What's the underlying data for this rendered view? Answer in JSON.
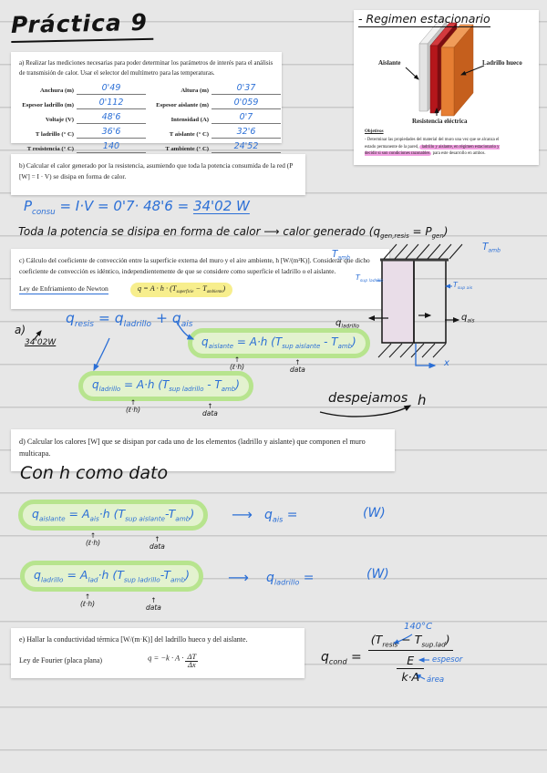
{
  "colors": {
    "paper": "#e7e7e7",
    "rule_line": "#c9c9c9",
    "ink_blue": "#2b6fd6",
    "ink_black": "#141414",
    "highlight_green": "#b7e48e",
    "highlight_yellow": "#f7ee8d",
    "highlight_pink": "#f29fe2",
    "slab_gray": "#e3e3e3",
    "slab_red": "#b5161b",
    "slab_orange": "#e67e33",
    "wall_fill": "#e9dde8"
  },
  "title": "Práctica 9",
  "figure": {
    "title": "- Regimen estacionario",
    "label_aislante": "Aislante",
    "label_ladrillo": "Ladrillo hueco",
    "label_resistencia": "Resistencia eléctrica",
    "objetivos_heading": "Objetivos",
    "objetivos_pre": "- Determinar las propiedades del material del muro una vez que se alcanza el estado permanente de la pared, ",
    "objetivos_hl": "ladrillo y aislante, en régimen estacionario y decidir si son condiciones razonables",
    "objetivos_post": " para este desarrollo en ambos."
  },
  "box_a": {
    "intro": "a) Realizar las mediciones necesarias para poder determinar los parámetros de interés para el análisis de transmisión de calor. Usar el selector del multímetro para las temperaturas.",
    "rows": [
      {
        "l_label": "Anchura (m)",
        "l_value": "0'49",
        "r_label": "Altura (m)",
        "r_value": "0'37"
      },
      {
        "l_label": "Espesor ladrillo (m)",
        "l_value": "0'112",
        "r_label": "Espesor aislante (m)",
        "r_value": "0'059"
      },
      {
        "l_label": "Voltaje (V)",
        "l_value": "48'6",
        "r_label": "Intensidad (A)",
        "r_value": "0'7"
      },
      {
        "l_label": "T ladrillo (° C)",
        "l_value": "36'6",
        "r_label": "T aislante (° C)",
        "r_value": "32'6"
      },
      {
        "l_label": "T resistencia (° C)",
        "l_value": "140",
        "r_label": "T ambiente (° C)",
        "r_value": "24'52"
      }
    ]
  },
  "box_b": {
    "text": "b) Calcular el calor generado por la resistencia, asumiendo que toda la potencia consumida de la red (P [W] = I · V) se disipa en forma de calor."
  },
  "hw_power": [
    {
      "t": "P"
    },
    {
      "t": "consu",
      "s": 1
    },
    {
      "t": " = I·V = 0'7· 48'6 = "
    },
    {
      "t": "34'02  W",
      "u": 1
    }
  ],
  "hw_toda": [
    {
      "t": "Toda  la  potencia  se  disipa  en  forma  de  calor  ⟶  calor generado (q"
    },
    {
      "t": "gen,resis",
      "s": 1
    },
    {
      "t": " = P"
    },
    {
      "t": "gen",
      "s": 1
    },
    {
      "t": ")"
    }
  ],
  "box_c": {
    "text": "c) Cálculo del coeficiente de convección entre la superficie externa del muro y el aire ambiente, h [W/(m²K)]. Considerar que dicho coeficiente de convección es idéntico, independientemente de que se considere como superficie el ladrillo o el aislante.",
    "newton_label": "Ley de Enfriamiento de Newton",
    "formula": [
      {
        "t": "q = A · h · (T"
      },
      {
        "t": "superficie",
        "s": 1
      },
      {
        "t": " − T"
      },
      {
        "t": "ambiente",
        "s": 1
      },
      {
        "t": ")"
      }
    ]
  },
  "section_c": {
    "a_label": "a)",
    "value_34": "34'02W",
    "eq_resis": [
      {
        "t": "q"
      },
      {
        "t": "resis",
        "s": 1
      },
      {
        "t": " = q"
      },
      {
        "t": "ladrillo",
        "s": 1
      },
      {
        "t": " + q"
      },
      {
        "t": "ais",
        "s": 1
      }
    ],
    "eq_aislante": [
      {
        "t": "q"
      },
      {
        "t": "aislante",
        "s": 1
      },
      {
        "t": " = A·h (T"
      },
      {
        "t": "sup aislante",
        "s": 1
      },
      {
        "t": " - T"
      },
      {
        "t": "amb",
        "s": 1
      },
      {
        "t": ")"
      }
    ],
    "eq_ladrillo": [
      {
        "t": "q"
      },
      {
        "t": "ladrillo",
        "s": 1
      },
      {
        "t": " = A·h (T"
      },
      {
        "t": "sup ladrillo",
        "s": 1
      },
      {
        "t": " - T"
      },
      {
        "t": "amb",
        "s": 1
      },
      {
        "t": ")"
      }
    ],
    "ann_arrow": "↑",
    "ann_area": "(ℓ·h)",
    "ann_data": "data",
    "despejamos": "despejamos",
    "h": "h"
  },
  "diagram": {
    "t_amb": [
      {
        "t": "T"
      },
      {
        "t": "amb",
        "s": 1
      }
    ],
    "t_sup_ladrillo": [
      {
        "t": "T"
      },
      {
        "t": "sup ladrillo",
        "s": 1
      }
    ],
    "t_sup_ais": [
      {
        "t": "T"
      },
      {
        "t": "sup ais",
        "s": 1
      }
    ],
    "q_ladrillo": [
      {
        "t": "q"
      },
      {
        "t": "ladrillo",
        "s": 1
      }
    ],
    "q_ais": [
      {
        "t": "q"
      },
      {
        "t": "ais",
        "s": 1
      }
    ],
    "x": "x"
  },
  "box_d": {
    "text": "d) Calcular los calores [W] que se disipan por cada uno de los elementos (ladrillo y aislante) que componen el muro multicapa."
  },
  "section_d": {
    "con_h": "Con  h  como dato",
    "eq_aislante": [
      {
        "t": "q"
      },
      {
        "t": "aislante",
        "s": 1
      },
      {
        "t": " = A"
      },
      {
        "t": "ais",
        "s": 1
      },
      {
        "t": "·h (T"
      },
      {
        "t": "sup aislante",
        "s": 1
      },
      {
        "t": "-T"
      },
      {
        "t": "amb",
        "s": 1
      },
      {
        "t": ")"
      }
    ],
    "eq_ladrillo": [
      {
        "t": "q"
      },
      {
        "t": "ladrillo",
        "s": 1
      },
      {
        "t": " = A"
      },
      {
        "t": "lad",
        "s": 1
      },
      {
        "t": "·h (T"
      },
      {
        "t": "sup ladrillo",
        "s": 1
      },
      {
        "t": "-T"
      },
      {
        "t": "amb",
        "s": 1
      },
      {
        "t": ")"
      }
    ],
    "arrow": "⟶",
    "res_ais": [
      {
        "t": "q"
      },
      {
        "t": "ais",
        "s": 1
      },
      {
        "t": " ="
      }
    ],
    "res_lad": [
      {
        "t": "q"
      },
      {
        "t": "ladrillo",
        "s": 1
      },
      {
        "t": " ="
      }
    ],
    "unit_w": "(W)",
    "ann_arrow": "↑",
    "ann_area": "(ℓ·h)",
    "ann_data": "data"
  },
  "box_e": {
    "line1": "e) Hallar la conductividad térmica [W/(m·K)] del ladrillo hueco y del aislante.",
    "fourier_label": "Ley de Fourier (placa plana)",
    "formula_pre": "q = −k · A ·",
    "frac_num": "ΔT",
    "frac_den": "Δx"
  },
  "qcond": {
    "lhs": [
      {
        "t": "q"
      },
      {
        "t": "cond",
        "s": 1
      },
      {
        "t": " ="
      }
    ],
    "num": [
      {
        "t": "(T"
      },
      {
        "t": "resis",
        "s": 1
      },
      {
        "t": " − T"
      },
      {
        "t": "sup.lad",
        "s": 1
      },
      {
        "t": ")"
      }
    ],
    "den_num": "E",
    "den_den": "k·A",
    "ann_140": "140°C",
    "ann_espesor": "espesor",
    "ann_area": "área"
  }
}
